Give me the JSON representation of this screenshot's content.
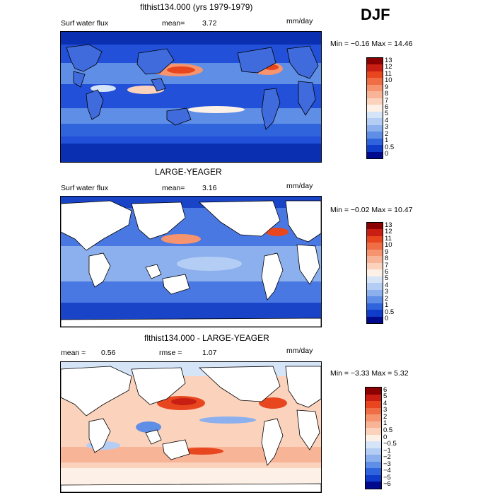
{
  "season": "DJF",
  "panels": [
    {
      "title": "flthist134.000 (yrs 1979-1979)",
      "left_label": "Surf water flux",
      "mean_label": "mean=",
      "mean_value": "3.72",
      "units": "mm/day",
      "minmax": "Min =  −0.16  Max =  14.46",
      "colorbar_labels": [
        "13",
        "12",
        "11",
        "10",
        "9",
        "8",
        "7",
        "6",
        "5",
        "4",
        "3",
        "2",
        "1",
        "0.5",
        "0"
      ],
      "colorbar_colors": [
        "#8b0000",
        "#c81e14",
        "#e8461e",
        "#f06e46",
        "#f5946e",
        "#f8b496",
        "#fbd2bc",
        "#fdf0e6",
        "#d6e4f8",
        "#b4cdf4",
        "#8cb0ee",
        "#5f8ee6",
        "#2f64dc",
        "#0f3cc8",
        "#000a8c"
      ],
      "land_color": "#3f6bdc",
      "ocean_color": "#2350d8"
    },
    {
      "title": "LARGE-YEAGER",
      "left_label": "Surf water flux",
      "mean_label": "mean=",
      "mean_value": "3.16",
      "units": "mm/day",
      "minmax": "Min =  −0.02  Max =  10.47",
      "colorbar_labels": [
        "13",
        "12",
        "11",
        "10",
        "9",
        "8",
        "7",
        "6",
        "5",
        "4",
        "3",
        "2",
        "1",
        "0.5",
        "0"
      ],
      "colorbar_colors": [
        "#8b0000",
        "#c81e14",
        "#e8461e",
        "#f06e46",
        "#f5946e",
        "#f8b496",
        "#fbd2bc",
        "#fdf0e6",
        "#d6e4f8",
        "#b4cdf4",
        "#8cb0ee",
        "#5f8ee6",
        "#2f64dc",
        "#0f3cc8",
        "#000a8c"
      ],
      "land_color": "#ffffff",
      "ocean_color": "#4a78e2"
    },
    {
      "title": "flthist134.000 - LARGE-YEAGER",
      "left_label": "mean =",
      "mean_label": "",
      "mean_value": "0.56",
      "rmse_label": "rmse =",
      "rmse_value": "1.07",
      "units": "mm/day",
      "minmax": "Min =  −3.33  Max =   5.32",
      "colorbar_labels": [
        "6",
        "5",
        "4",
        "3",
        "2",
        "1",
        "0.5",
        "0",
        "−0.5",
        "−1",
        "−2",
        "−3",
        "−4",
        "−5",
        "−6"
      ],
      "colorbar_colors": [
        "#8b0000",
        "#c81e14",
        "#e8461e",
        "#f06e46",
        "#f5946e",
        "#f8b496",
        "#fbd2bc",
        "#fdf0e6",
        "#d6e4f8",
        "#b4cdf4",
        "#8cb0ee",
        "#5f8ee6",
        "#2f64dc",
        "#0f3cc8",
        "#000a8c"
      ],
      "land_color": "#ffffff",
      "ocean_color": "#fbd2bc"
    }
  ]
}
